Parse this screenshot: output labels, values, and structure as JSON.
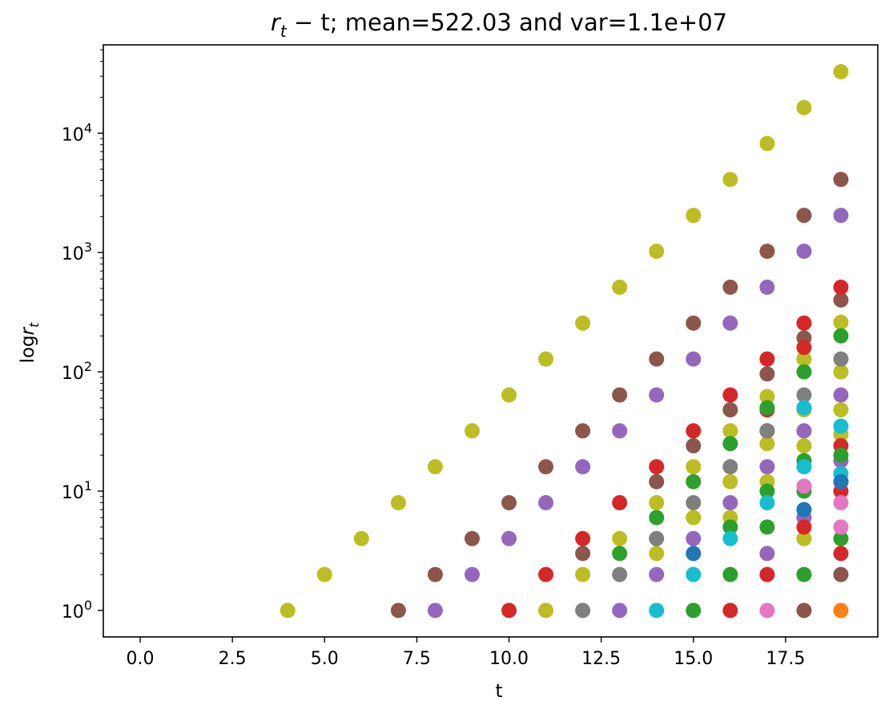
{
  "chart_data": {
    "type": "scatter",
    "title_main": "; mean=522.03 and var=1.1e+07",
    "title_math_r": "r",
    "title_math_sub": "t",
    "title_math_rest": " − t",
    "xlabel": "t",
    "ylabel_prefix": "log",
    "ylabel_var": "r",
    "ylabel_sub": "t",
    "xlim": [
      -1.0,
      20.0
    ],
    "ylim": [
      0.6,
      55000
    ],
    "yscale": "log",
    "grid": false,
    "x_ticks": [
      0.0,
      2.5,
      5.0,
      7.5,
      10.0,
      12.5,
      15.0,
      17.5
    ],
    "x_tick_labels": [
      "0.0",
      "2.5",
      "5.0",
      "7.5",
      "10.0",
      "12.5",
      "15.0",
      "17.5"
    ],
    "y_ticks": [
      1,
      10,
      100,
      1000,
      10000
    ],
    "y_tick_base": "10",
    "y_tick_exps": [
      "0",
      "1",
      "2",
      "3",
      "4"
    ],
    "series": [
      {
        "color": "#bcbd22",
        "points": [
          [
            4,
            1
          ],
          [
            5,
            2
          ],
          [
            6,
            4
          ],
          [
            7,
            8
          ],
          [
            8,
            16
          ],
          [
            9,
            32
          ],
          [
            10,
            64
          ],
          [
            11,
            128
          ],
          [
            12,
            256
          ],
          [
            13,
            512
          ],
          [
            14,
            1024
          ],
          [
            15,
            2048
          ],
          [
            16,
            4096
          ],
          [
            17,
            8192
          ],
          [
            18,
            16384
          ],
          [
            19,
            32768
          ],
          [
            11,
            1
          ],
          [
            12,
            2
          ],
          [
            13,
            4
          ],
          [
            14,
            3
          ],
          [
            14,
            8
          ],
          [
            15,
            6
          ],
          [
            15,
            16
          ],
          [
            16,
            6
          ],
          [
            16,
            12
          ],
          [
            16,
            32
          ],
          [
            17,
            12
          ],
          [
            17,
            25
          ],
          [
            17,
            62
          ],
          [
            18,
            4
          ],
          [
            18,
            24
          ],
          [
            18,
            48
          ],
          [
            18,
            128
          ],
          [
            19,
            30
          ],
          [
            19,
            48
          ],
          [
            19,
            100
          ],
          [
            19,
            260
          ]
        ]
      },
      {
        "color": "#8c564b",
        "points": [
          [
            7,
            1
          ],
          [
            8,
            2
          ],
          [
            9,
            4
          ],
          [
            10,
            8
          ],
          [
            11,
            16
          ],
          [
            12,
            32
          ],
          [
            13,
            64
          ],
          [
            14,
            128
          ],
          [
            15,
            256
          ],
          [
            16,
            512
          ],
          [
            17,
            1024
          ],
          [
            18,
            2048
          ],
          [
            19,
            4096
          ],
          [
            12,
            3
          ],
          [
            14,
            12
          ],
          [
            15,
            24
          ],
          [
            16,
            48
          ],
          [
            17,
            96
          ],
          [
            18,
            192
          ],
          [
            19,
            400
          ],
          [
            18,
            1
          ],
          [
            19,
            2
          ],
          [
            17,
            32
          ]
        ]
      },
      {
        "color": "#9467bd",
        "points": [
          [
            8,
            1
          ],
          [
            9,
            2
          ],
          [
            10,
            4
          ],
          [
            11,
            8
          ],
          [
            12,
            16
          ],
          [
            13,
            32
          ],
          [
            14,
            64
          ],
          [
            15,
            128
          ],
          [
            16,
            256
          ],
          [
            17,
            512
          ],
          [
            18,
            1024
          ],
          [
            19,
            2048
          ],
          [
            13,
            1
          ],
          [
            14,
            2
          ],
          [
            15,
            4
          ],
          [
            16,
            8
          ],
          [
            17,
            16
          ],
          [
            18,
            32
          ],
          [
            19,
            64
          ],
          [
            17,
            3
          ],
          [
            18,
            6
          ],
          [
            19,
            12
          ],
          [
            19,
            18
          ]
        ]
      },
      {
        "color": "#d62728",
        "points": [
          [
            10,
            1
          ],
          [
            11,
            2
          ],
          [
            12,
            4
          ],
          [
            13,
            8
          ],
          [
            14,
            16
          ],
          [
            15,
            32
          ],
          [
            16,
            64
          ],
          [
            17,
            128
          ],
          [
            18,
            256
          ],
          [
            19,
            512
          ],
          [
            16,
            1
          ],
          [
            17,
            2
          ],
          [
            18,
            5
          ],
          [
            19,
            3
          ],
          [
            19,
            10
          ],
          [
            19,
            24
          ],
          [
            18,
            160
          ],
          [
            17,
            48
          ]
        ]
      },
      {
        "color": "#7f7f7f",
        "points": [
          [
            12,
            1
          ],
          [
            13,
            2
          ],
          [
            14,
            4
          ],
          [
            15,
            8
          ],
          [
            16,
            16
          ],
          [
            17,
            32
          ],
          [
            18,
            64
          ],
          [
            19,
            128
          ]
        ]
      },
      {
        "color": "#2ca02c",
        "points": [
          [
            15,
            1
          ],
          [
            16,
            2
          ],
          [
            17,
            5
          ],
          [
            18,
            10
          ],
          [
            19,
            20
          ],
          [
            13,
            3
          ],
          [
            14,
            6
          ],
          [
            15,
            12
          ],
          [
            16,
            25
          ],
          [
            17,
            50
          ],
          [
            18,
            100
          ],
          [
            19,
            200
          ],
          [
            19,
            4
          ],
          [
            18,
            2
          ],
          [
            16,
            5
          ],
          [
            18,
            18
          ],
          [
            17,
            10
          ]
        ]
      },
      {
        "color": "#17becf",
        "points": [
          [
            14,
            1
          ],
          [
            15,
            2
          ],
          [
            16,
            4
          ],
          [
            17,
            8
          ],
          [
            18,
            16
          ],
          [
            19,
            35
          ],
          [
            19,
            14
          ],
          [
            18,
            50
          ]
        ]
      },
      {
        "color": "#1f77b4",
        "points": [
          [
            15,
            3
          ],
          [
            18,
            7
          ],
          [
            19,
            12
          ]
        ]
      },
      {
        "color": "#e377c2",
        "points": [
          [
            17,
            1
          ],
          [
            18,
            11
          ],
          [
            19,
            8
          ],
          [
            19,
            5
          ]
        ]
      },
      {
        "color": "#ff7f0e",
        "points": [
          [
            19,
            1
          ]
        ]
      }
    ]
  }
}
